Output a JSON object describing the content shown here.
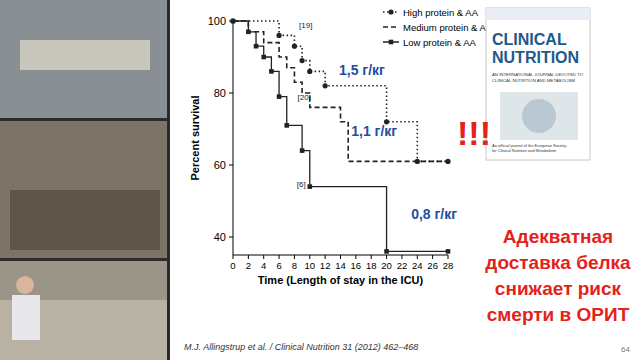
{
  "chart_data": {
    "type": "step",
    "x_label": "Time (Length of stay in the ICU)",
    "y_label": "Percent survival",
    "xlim": [
      0,
      28
    ],
    "ylim": [
      35,
      100
    ],
    "xticks": [
      0,
      2,
      4,
      6,
      8,
      10,
      12,
      14,
      16,
      18,
      20,
      22,
      24,
      26,
      28
    ],
    "yticks": [
      40,
      60,
      80,
      100
    ],
    "grid": false,
    "legend": "upper right",
    "series": [
      {
        "name": "High protein & AA",
        "color": "#222222",
        "line_style": "dotted",
        "marker": "circle",
        "x": [
          0,
          6,
          8,
          9,
          10,
          12,
          20,
          24,
          28
        ],
        "values": [
          100,
          96,
          93,
          89,
          86,
          82,
          72,
          61,
          61
        ]
      },
      {
        "name": "Medium protein & AA",
        "color": "#222222",
        "line_style": "dashed",
        "marker": "none",
        "x": [
          0,
          2,
          4,
          6,
          7,
          8,
          9,
          10,
          14,
          15,
          28
        ],
        "values": [
          100,
          97,
          94,
          90,
          87,
          83,
          80,
          76,
          72,
          61,
          61
        ]
      },
      {
        "name": "Low protein & AA",
        "color": "#222222",
        "line_style": "solid",
        "marker": "square",
        "x": [
          0,
          2,
          3,
          4,
          5,
          6,
          7,
          9,
          10,
          20,
          28
        ],
        "values": [
          100,
          97,
          93,
          90,
          86,
          79,
          71,
          64,
          54,
          36,
          36
        ]
      }
    ],
    "annotations": [
      {
        "text": "[19]",
        "x": 8.6,
        "y": 98,
        "color": "#222222"
      },
      {
        "text": "[20]",
        "x": 8.4,
        "y": 78,
        "color": "#222222"
      },
      {
        "text": "[6]",
        "x": 8.3,
        "y": 54,
        "color": "#222222"
      },
      {
        "text": "1,5 г/кг",
        "x": 13.8,
        "y": 85,
        "color": "#1f4e9e"
      },
      {
        "text": "1,1 г/кг",
        "x": 15.4,
        "y": 68,
        "color": "#1f4e9e"
      },
      {
        "text": "0,8 г/кг",
        "x": 23.2,
        "y": 45,
        "color": "#1f4e9e"
      }
    ]
  },
  "slide": {
    "exclamation": "!!!",
    "heading_lines": [
      "Адекватная",
      "доставка белка",
      "снижает риск",
      "смерти в ОРИТ"
    ],
    "citation": "M.J. Allingstrup et al. / Clinical Nutrition 31 (2012) 462–468",
    "page_number": "64"
  },
  "journal_cover": {
    "title_lines": [
      "CLINICAL",
      "NUTRITION"
    ],
    "subtitle_lines": [
      "AN INTERNATIONAL JOURNAL DEVOTED TO",
      "CLINICAL NUTRITION AND METABOLISM"
    ],
    "bottom_lines": [
      "An official journal of the European Society",
      "for Clinical Nutrition and Metabolism"
    ]
  }
}
